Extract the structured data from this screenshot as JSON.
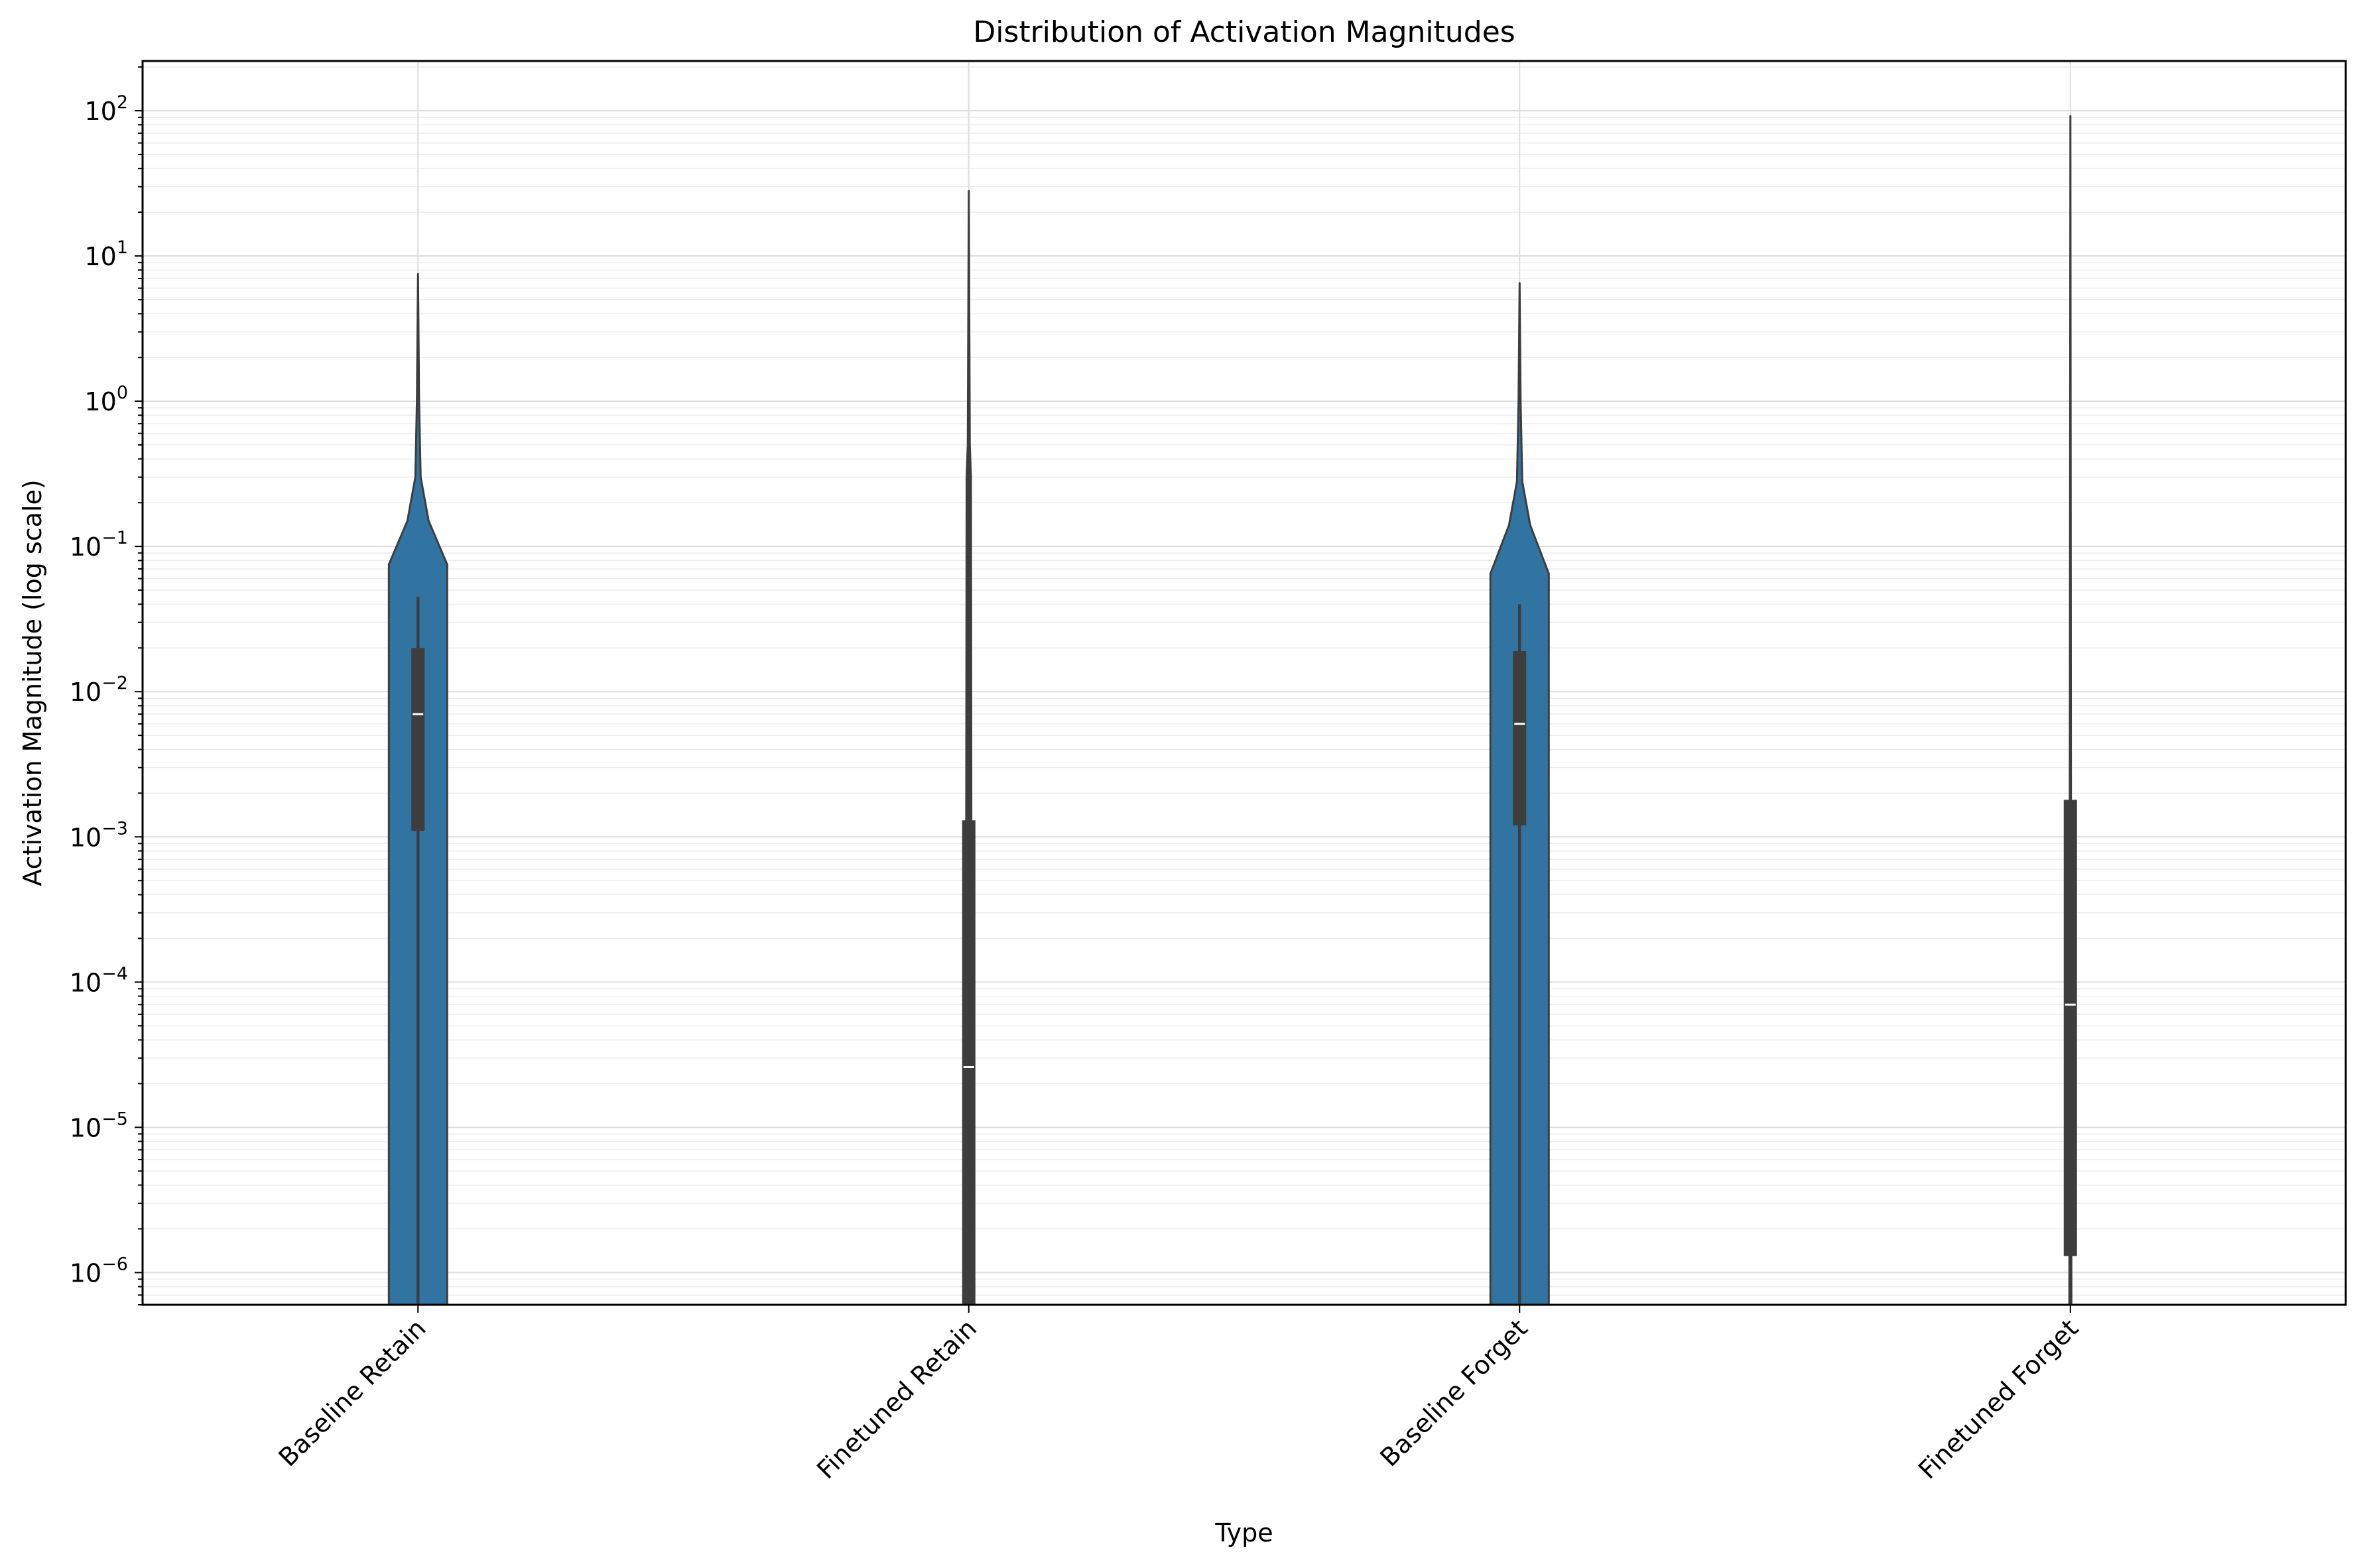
{
  "chart_data": {
    "type": "violin",
    "title": "Distribution of Activation Magnitudes",
    "xlabel": "Type",
    "ylabel": "Activation Magnitude (log scale)",
    "yscale": "log",
    "ylim": [
      6e-07,
      220
    ],
    "grid": true,
    "fill_color": "#3274a1",
    "box_color": "#3d3d3d",
    "categories": [
      "Baseline Retain",
      "Finetuned Retain",
      "Baseline Forget",
      "Finetuned Forget"
    ],
    "yticks": [
      {
        "exp": -6,
        "label_base": "10",
        "label_exp": "−6"
      },
      {
        "exp": -5,
        "label_base": "10",
        "label_exp": "−5"
      },
      {
        "exp": -4,
        "label_base": "10",
        "label_exp": "−4"
      },
      {
        "exp": -3,
        "label_base": "10",
        "label_exp": "−3"
      },
      {
        "exp": -2,
        "label_base": "10",
        "label_exp": "−2"
      },
      {
        "exp": -1,
        "label_base": "10",
        "label_exp": "−1"
      },
      {
        "exp": 0,
        "label_base": "10",
        "label_exp": "0"
      },
      {
        "exp": 1,
        "label_base": "10",
        "label_exp": "1"
      },
      {
        "exp": 2,
        "label_base": "10",
        "label_exp": "2"
      }
    ],
    "violins": [
      {
        "category": "Baseline Retain",
        "max": 7.5,
        "whisker_high": 0.045,
        "q3": 0.02,
        "median": 0.007,
        "q1": 0.0011,
        "shape": [
          [
            6e-07,
            0.55
          ],
          [
            0.075,
            0.55
          ],
          [
            0.15,
            0.2
          ],
          [
            0.3,
            0.05
          ],
          [
            1.0,
            0.02
          ],
          [
            7.5,
            0.0
          ]
        ]
      },
      {
        "category": "Finetuned Retain",
        "max": 28,
        "whisker_high": 0.5,
        "q3": 0.0013,
        "median": 2.6e-05,
        "q1": 6e-07,
        "shape": [
          [
            6e-07,
            0.06
          ],
          [
            0.3,
            0.04
          ],
          [
            0.5,
            0.02
          ],
          [
            28,
            0.0
          ]
        ]
      },
      {
        "category": "Baseline Forget",
        "max": 6.5,
        "whisker_high": 0.04,
        "q3": 0.019,
        "median": 0.006,
        "q1": 0.0012,
        "shape": [
          [
            6e-07,
            0.55
          ],
          [
            0.065,
            0.55
          ],
          [
            0.14,
            0.2
          ],
          [
            0.28,
            0.05
          ],
          [
            1.0,
            0.02
          ],
          [
            6.5,
            0.0
          ]
        ]
      },
      {
        "category": "Finetuned Forget",
        "max": 92,
        "whisker_high": 0.004,
        "q3": 0.0018,
        "median": 7e-05,
        "q1": 1.3e-06,
        "shape": [
          [
            6e-07,
            0.02
          ],
          [
            92,
            0.0
          ]
        ]
      }
    ]
  }
}
